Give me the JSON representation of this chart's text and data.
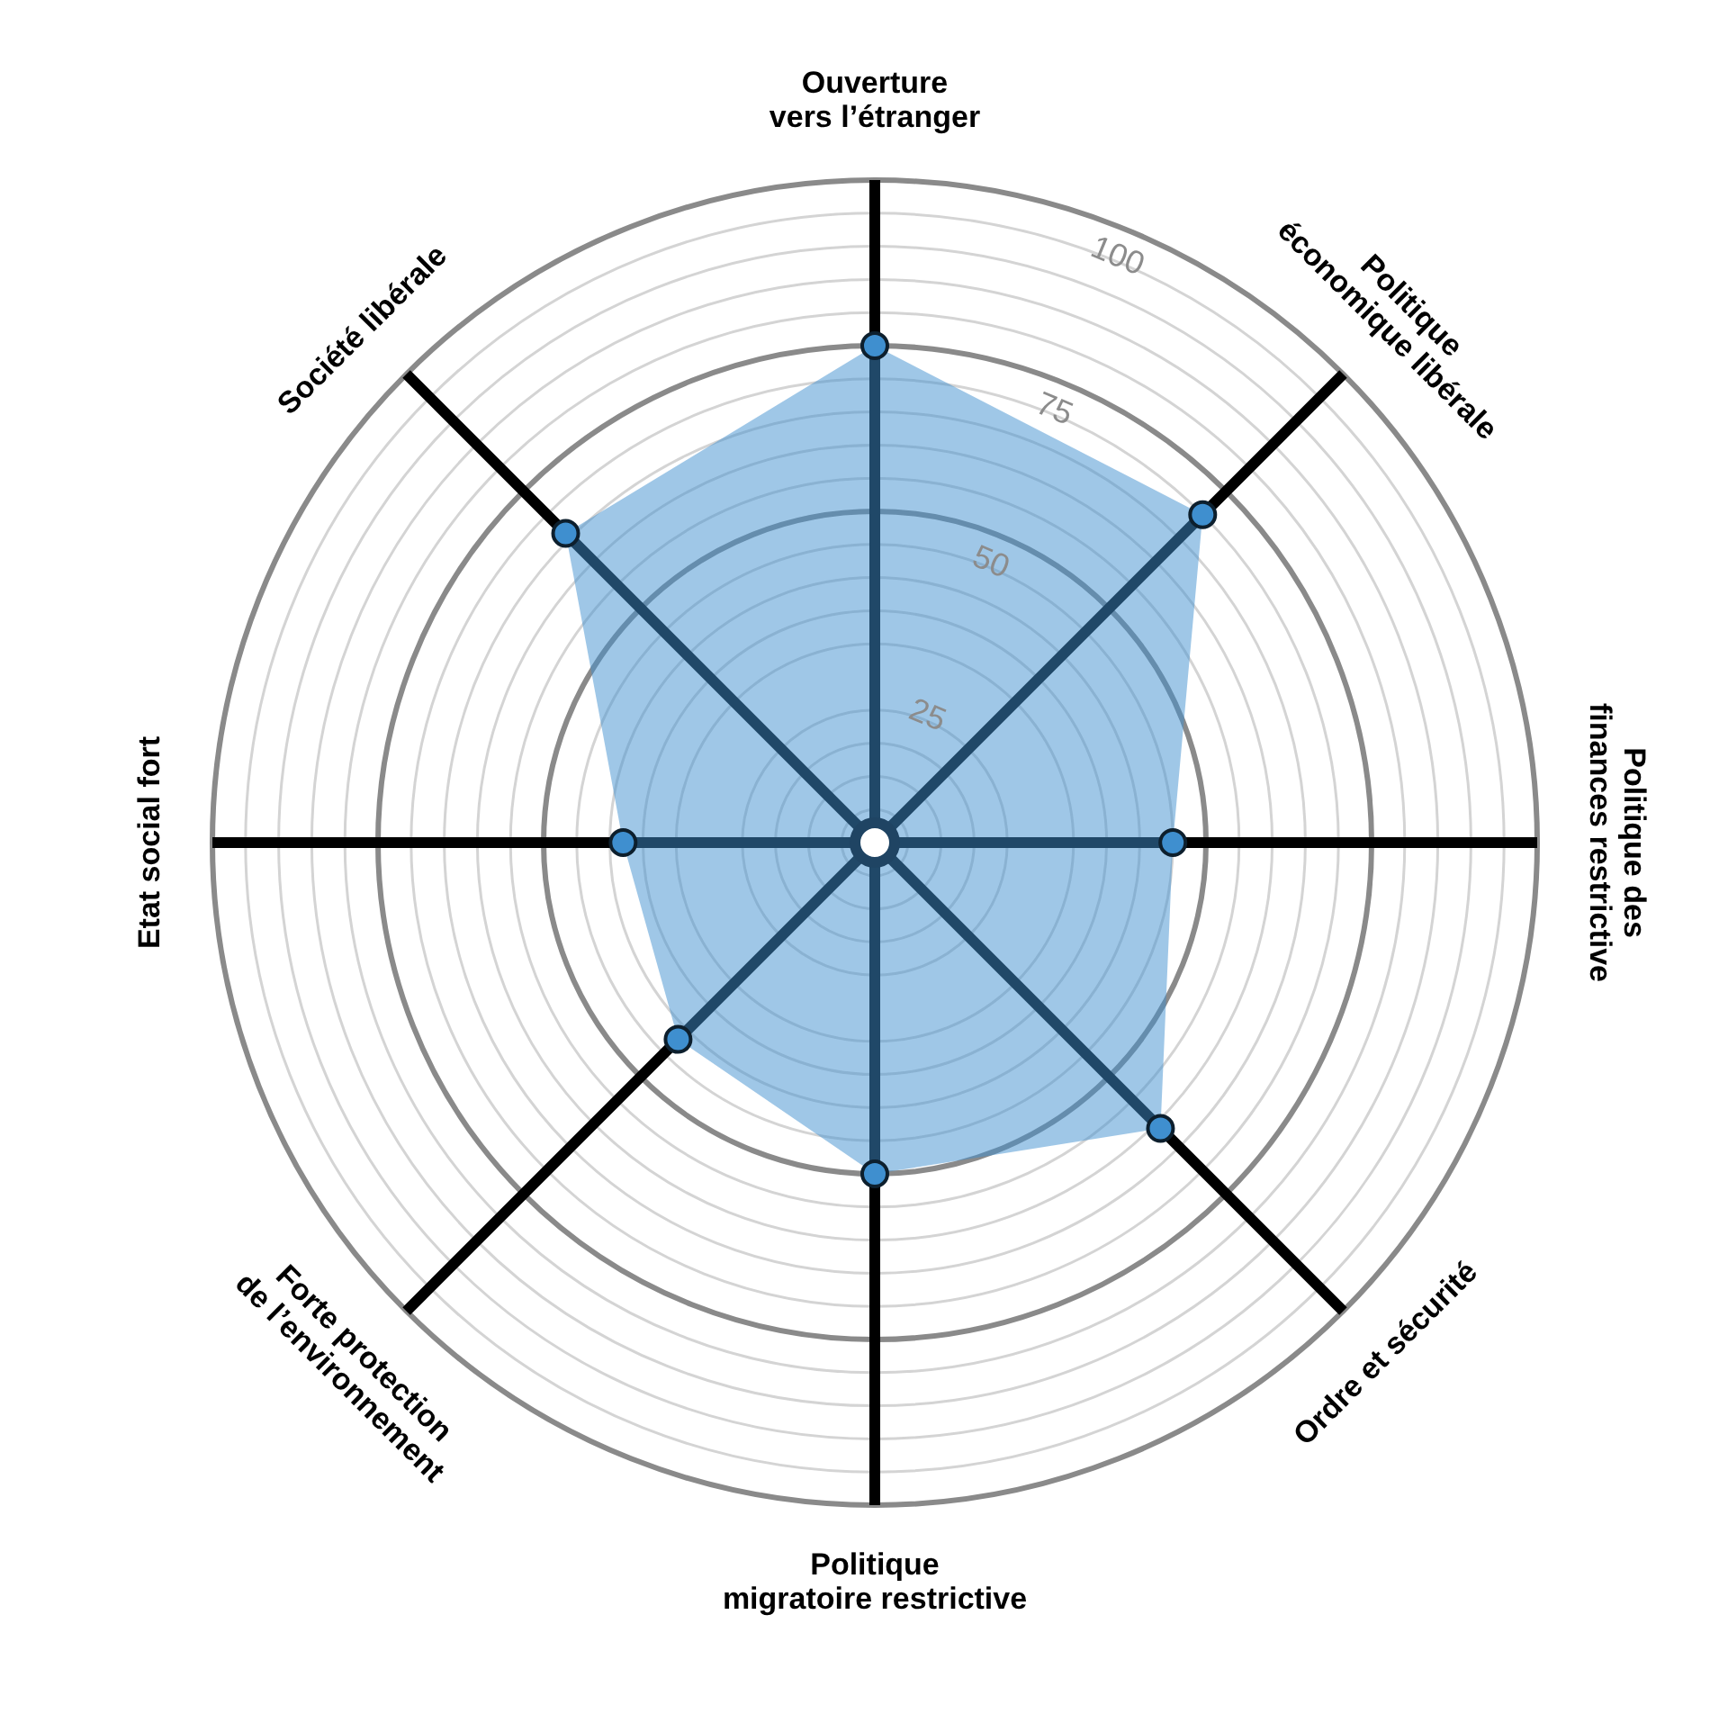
{
  "chart_data": {
    "type": "radar",
    "categories": [
      "Ouverture\nvers l’étranger",
      "Politique\néconomique libérale",
      "Politique des\nfinances restrictive",
      "Ordre et sécurité",
      "Politique\nmigratoire restrictive",
      "Forte protection\nde l’environnement",
      "Etat social fort",
      "Société libérale"
    ],
    "series": [
      {
        "color": "#3f8fcf",
        "values": [
          75,
          70,
          45,
          61,
          50,
          42,
          38,
          66
        ]
      }
    ],
    "ylim": [
      0,
      100
    ],
    "yticks": [
      25,
      50,
      75,
      100
    ],
    "grid": true,
    "legend": false,
    "marker": "circle"
  }
}
